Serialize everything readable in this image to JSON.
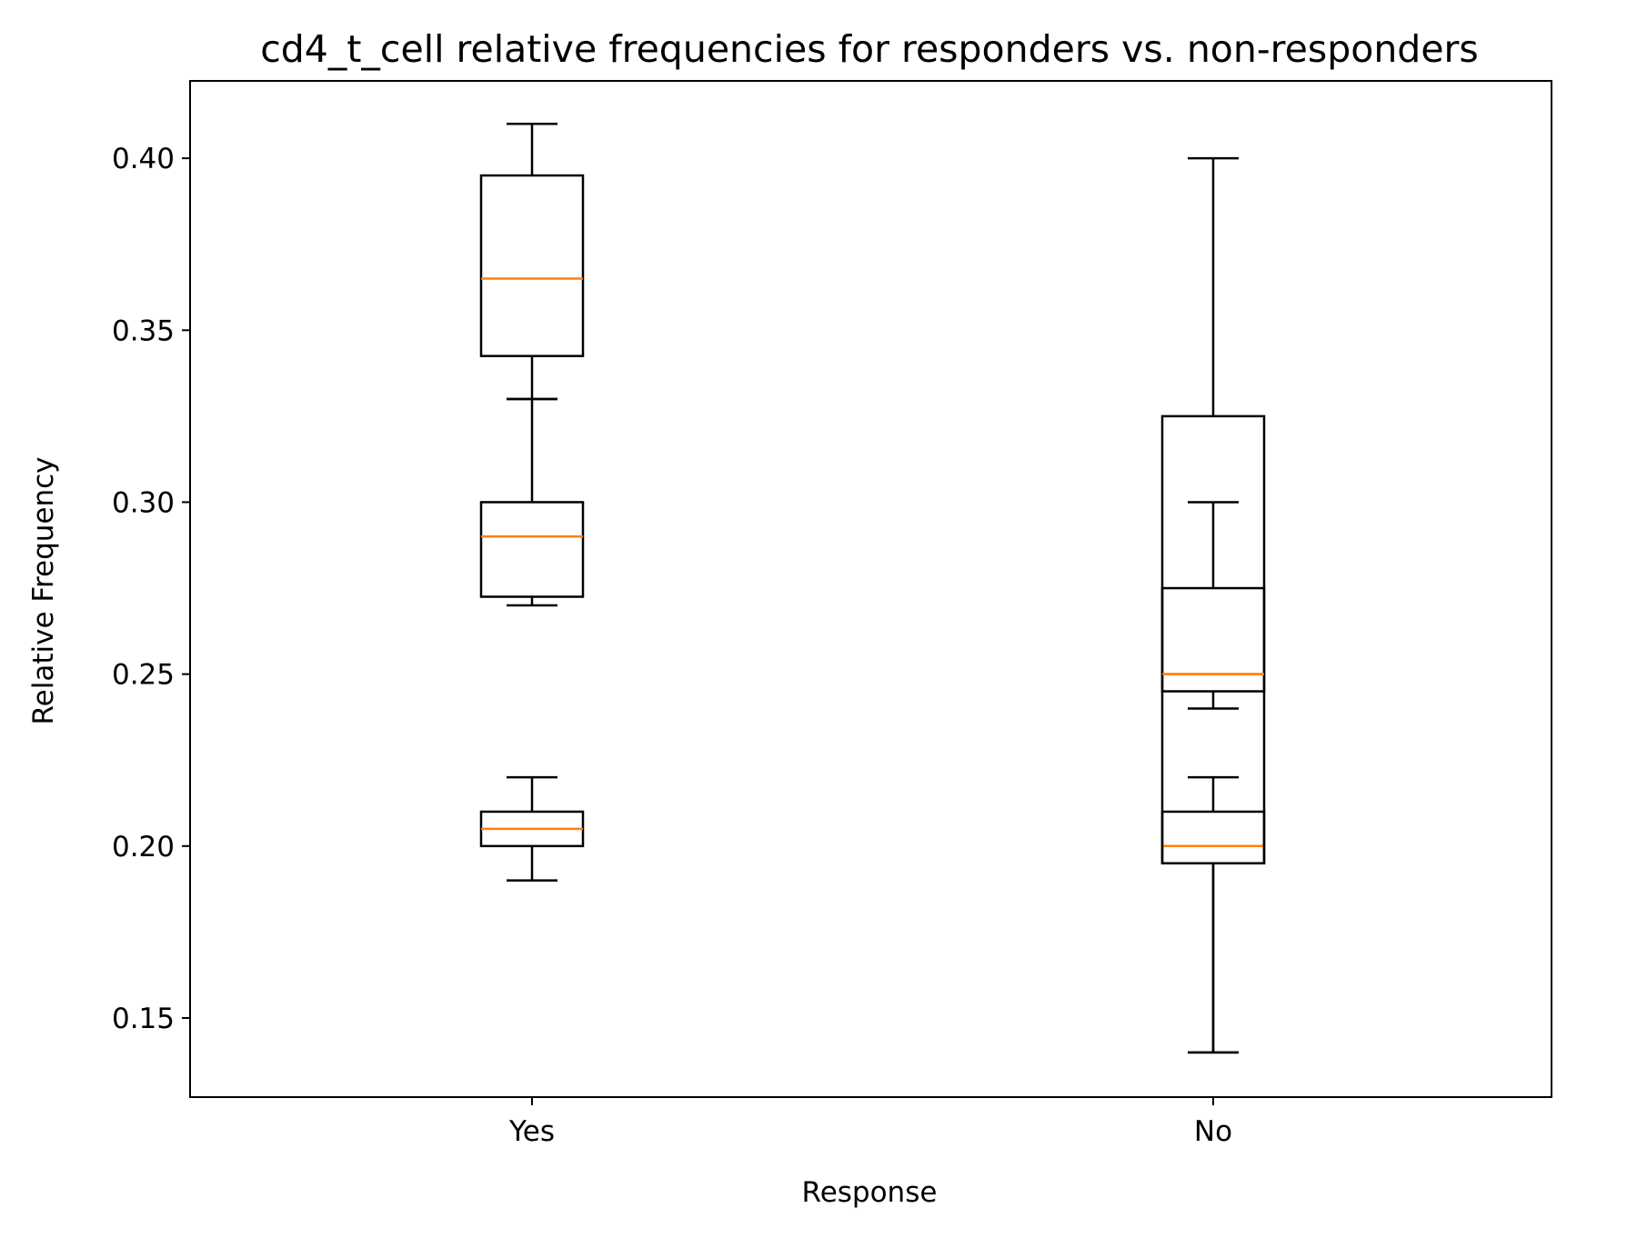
{
  "chart_data": {
    "type": "box",
    "title": "cd4_t_cell relative frequencies for responders vs. non-responders",
    "xlabel": "Response",
    "ylabel": "Relative Frequency",
    "categories": [
      "Yes",
      "No"
    ],
    "ylim": [
      0.127,
      0.4225
    ],
    "yticks": [
      0.15,
      0.2,
      0.25,
      0.3,
      0.35,
      0.4
    ],
    "ytick_labels": [
      "0.15",
      "0.20",
      "0.25",
      "0.30",
      "0.35",
      "0.40"
    ],
    "grid": false,
    "box_color": "#000000",
    "median_color": "#ff7f0e",
    "boxes": [
      {
        "category": "Yes",
        "whisker_low": 0.33,
        "q1": 0.3425,
        "median": 0.365,
        "q3": 0.395,
        "whisker_high": 0.41
      },
      {
        "category": "Yes",
        "whisker_low": 0.27,
        "q1": 0.2725,
        "median": 0.29,
        "q3": 0.3,
        "whisker_high": 0.33
      },
      {
        "category": "Yes",
        "whisker_low": 0.19,
        "q1": 0.2,
        "median": 0.205,
        "q3": 0.21,
        "whisker_high": 0.22
      },
      {
        "category": "No",
        "whisker_low": 0.24,
        "q1": 0.245,
        "median": 0.25,
        "q3": 0.275,
        "whisker_high": 0.3
      },
      {
        "category": "No",
        "whisker_low": 0.14,
        "q1": 0.195,
        "median": 0.2,
        "q3": 0.21,
        "whisker_high": 0.22
      },
      {
        "category": "No",
        "whisker_low": 0.14,
        "q1": 0.195,
        "median": 0.25,
        "q3": 0.325,
        "whisker_high": 0.4
      }
    ]
  }
}
